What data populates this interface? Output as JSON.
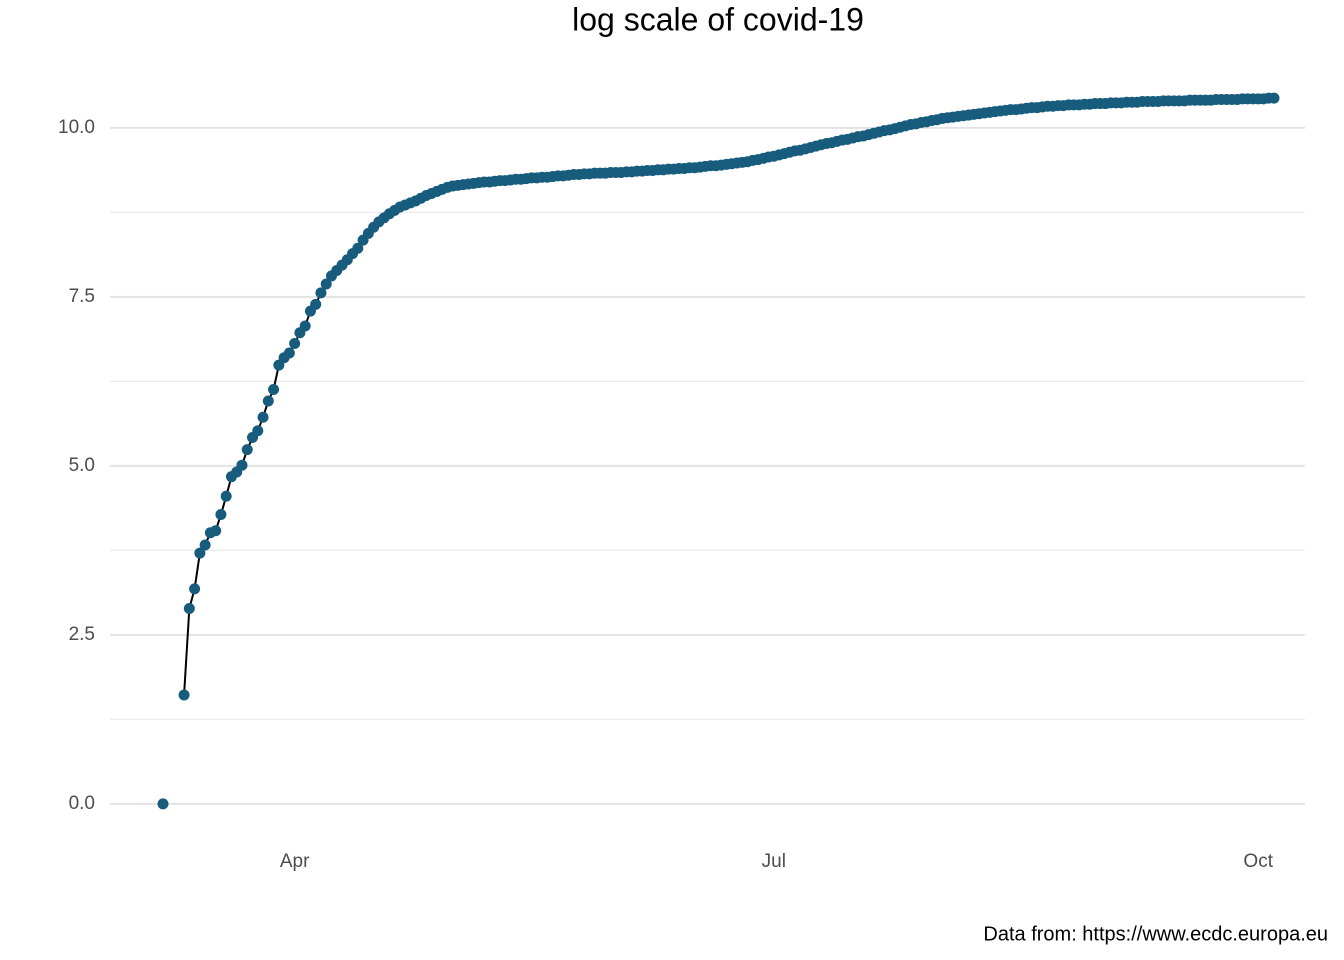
{
  "chart_data": {
    "type": "line",
    "title": "log scale of covid-19",
    "caption": "Data from: https://www.ecdc.europa.eu",
    "categories": [
      null,
      null,
      null,
      null,
      null,
      null,
      null,
      null,
      null,
      null,
      null,
      null,
      null,
      null,
      null,
      null,
      null,
      null,
      null,
      null,
      null,
      null,
      null,
      null,
      null,
      "Apr",
      null,
      null,
      null,
      null,
      null,
      null,
      null,
      null,
      null,
      null,
      null,
      null,
      null,
      null,
      null,
      null,
      null,
      null,
      null,
      null,
      null,
      null,
      null,
      null,
      null,
      null,
      null,
      null,
      null,
      null,
      null,
      null,
      null,
      null,
      null,
      null,
      null,
      null,
      null,
      null,
      null,
      null,
      null,
      null,
      null,
      null,
      null,
      null,
      null,
      null,
      null,
      null,
      null,
      null,
      null,
      null,
      null,
      null,
      null,
      null,
      null,
      null,
      null,
      null,
      null,
      null,
      null,
      null,
      null,
      null,
      null,
      null,
      null,
      null,
      null,
      null,
      null,
      null,
      null,
      null,
      null,
      null,
      null,
      null,
      null,
      null,
      null,
      null,
      null,
      null,
      "Jul",
      null,
      null,
      null,
      null,
      null,
      null,
      null,
      null,
      null,
      null,
      null,
      null,
      null,
      null,
      null,
      null,
      null,
      null,
      null,
      null,
      null,
      null,
      null,
      null,
      null,
      null,
      null,
      null,
      null,
      null,
      null,
      null,
      null,
      null,
      null,
      null,
      null,
      null,
      null,
      null,
      null,
      null,
      null,
      null,
      null,
      null,
      null,
      null,
      null,
      null,
      null,
      null,
      null,
      null,
      null,
      null,
      null,
      null,
      null,
      null,
      null,
      null,
      null,
      null,
      null,
      null,
      null,
      null,
      null,
      null,
      null,
      null,
      null,
      null,
      null,
      null,
      null,
      null,
      null,
      null,
      null,
      null,
      null,
      null,
      null,
      null,
      null,
      null,
      null,
      null,
      null,
      "Oct",
      null,
      null,
      null
    ],
    "values": [
      0,
      null,
      null,
      null,
      1.61,
      2.89,
      3.18,
      3.71,
      3.83,
      4.01,
      4.04,
      4.28,
      4.55,
      4.84,
      4.91,
      5.01,
      5.24,
      5.42,
      5.52,
      5.72,
      5.96,
      6.13,
      6.49,
      6.6,
      6.67,
      6.81,
      6.97,
      7.07,
      7.29,
      7.39,
      7.56,
      7.69,
      7.81,
      7.89,
      7.97,
      8.05,
      8.14,
      8.22,
      8.34,
      8.44,
      8.53,
      8.61,
      8.67,
      8.73,
      8.78,
      8.83,
      8.86,
      8.89,
      8.92,
      8.96,
      9.0,
      9.03,
      9.06,
      9.09,
      9.12,
      9.14,
      9.15,
      9.16,
      9.17,
      9.18,
      9.19,
      9.2,
      9.2,
      9.21,
      9.22,
      9.22,
      9.23,
      9.24,
      9.24,
      9.25,
      9.26,
      9.26,
      9.27,
      9.27,
      9.28,
      9.29,
      9.29,
      9.3,
      9.31,
      9.31,
      9.32,
      9.32,
      9.33,
      9.33,
      9.33,
      9.34,
      9.34,
      9.34,
      9.35,
      9.35,
      9.36,
      9.36,
      9.37,
      9.37,
      9.38,
      9.38,
      9.39,
      9.39,
      9.4,
      9.4,
      9.41,
      9.41,
      9.42,
      9.43,
      9.44,
      9.44,
      9.45,
      9.46,
      9.47,
      9.48,
      9.49,
      9.5,
      9.52,
      9.53,
      9.55,
      9.57,
      9.58,
      9.6,
      9.62,
      9.64,
      9.66,
      9.67,
      9.69,
      9.71,
      9.73,
      9.75,
      9.77,
      9.78,
      9.8,
      9.82,
      9.83,
      9.85,
      9.87,
      9.88,
      9.9,
      9.92,
      9.94,
      9.96,
      9.97,
      9.99,
      10.01,
      10.03,
      10.05,
      10.06,
      10.08,
      10.09,
      10.11,
      10.12,
      10.14,
      10.15,
      10.16,
      10.17,
      10.18,
      10.19,
      10.2,
      10.21,
      10.22,
      10.23,
      10.24,
      10.25,
      10.26,
      10.27,
      10.27,
      10.28,
      10.29,
      10.3,
      10.3,
      10.31,
      10.32,
      10.32,
      10.33,
      10.33,
      10.34,
      10.34,
      10.34,
      10.35,
      10.35,
      10.36,
      10.36,
      10.36,
      10.37,
      10.37,
      10.37,
      10.38,
      10.38,
      10.38,
      10.39,
      10.39,
      10.39,
      10.39,
      10.4,
      10.4,
      10.4,
      10.4,
      10.4,
      10.41,
      10.41,
      10.41,
      10.41,
      10.41,
      10.42,
      10.42,
      10.42,
      10.42,
      10.42,
      10.43,
      10.43,
      10.43,
      10.43,
      10.43,
      10.44,
      10.44
    ],
    "color": "#175c7d",
    "line_color": "#000000",
    "ylim": [
      -0.52,
      10.96
    ],
    "yticks": [
      {
        "value": 0,
        "label": "0.0"
      },
      2.5,
      {
        "value": 5,
        "label": "5.0"
      },
      7.5,
      {
        "value": 10,
        "label": "10.0"
      }
    ],
    "minor_yticks": [
      1.25,
      3.75,
      6.25,
      8.75
    ],
    "grid": true
  }
}
